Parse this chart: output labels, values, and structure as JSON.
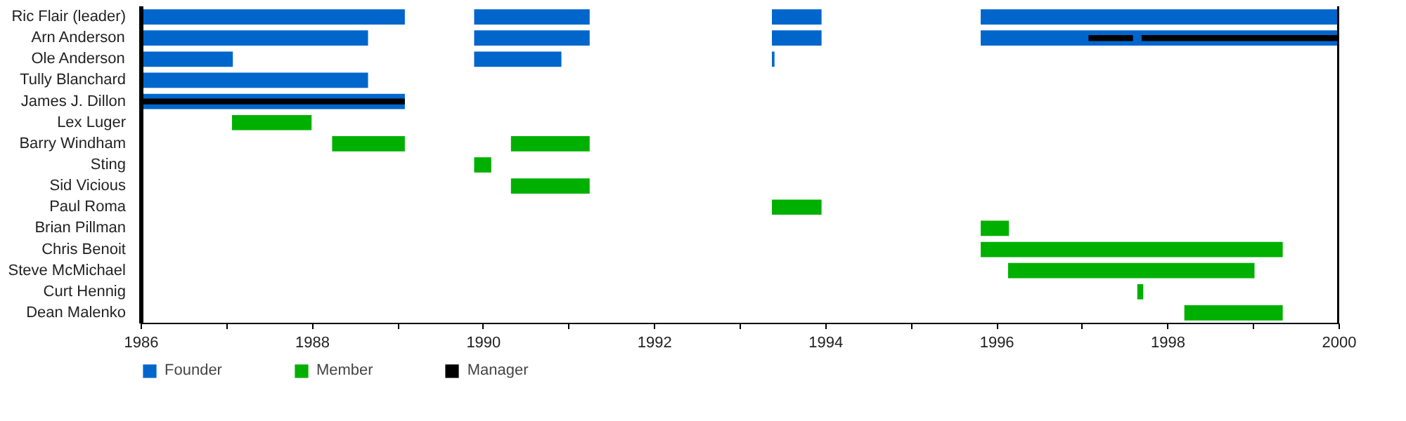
{
  "chart_data": {
    "type": "bar",
    "orientation": "horizontal",
    "categories": [
      "Ric Flair (leader)",
      "Arn Anderson",
      "Ole Anderson",
      "Tully Blanchard",
      "James J. Dillon",
      "Lex Luger",
      "Barry Windham",
      "Sting",
      "Sid Vicious",
      "Paul Roma",
      "Brian Pillman",
      "Chris Benoit",
      "Steve McMichael",
      "Curt Hennig",
      "Dean Malenko"
    ],
    "series": [
      {
        "name": "Founder",
        "color": "#0066cc",
        "base": [
          1986,
          1986,
          1986,
          1986,
          1986,
          null,
          null,
          null,
          null,
          null,
          null,
          null,
          null,
          null,
          null
        ],
        "values": [
          3.08,
          2.65,
          1.07,
          2.65,
          3.08,
          null,
          null,
          null,
          null,
          null,
          null,
          null,
          null,
          null,
          null
        ]
      },
      {
        "color": "#0066cc",
        "base": [
          1989.89,
          1989.89,
          1989.89,
          null,
          null,
          null,
          null,
          null,
          null,
          null,
          null,
          null,
          null,
          null,
          null
        ],
        "values": [
          1.35,
          1.35,
          1.02,
          null,
          null,
          null,
          null,
          null,
          null,
          null,
          null,
          null,
          null,
          null,
          null
        ]
      },
      {
        "color": "#0066cc",
        "base": [
          1993.37,
          1993.37,
          1993.37,
          null,
          null,
          null,
          null,
          null,
          null,
          null,
          null,
          null,
          null,
          null,
          null
        ],
        "values": [
          0.58,
          0.58,
          0.03,
          null,
          null,
          null,
          null,
          null,
          null,
          null,
          null,
          null,
          null,
          null,
          null
        ]
      },
      {
        "color": "#0066cc",
        "base": [
          1995.81,
          1995.81,
          null,
          null,
          null,
          null,
          null,
          null,
          null,
          null,
          null,
          null,
          null,
          null,
          null
        ],
        "values": [
          4.19,
          4.19,
          null,
          null,
          null,
          null,
          null,
          null,
          null,
          null,
          null,
          null,
          null,
          null,
          null
        ]
      },
      {
        "name": "Member",
        "color": "#00b000",
        "base": [
          null,
          null,
          null,
          null,
          null,
          1987.06,
          1988.23,
          1989.89,
          1990.32,
          1993.37,
          1995.81,
          1995.81,
          1996.13,
          1997.64,
          1998.19
        ],
        "values": [
          null,
          null,
          null,
          null,
          null,
          0.93,
          0.85,
          0.2,
          0.92,
          0.58,
          0.33,
          3.53,
          2.88,
          0.07,
          1.15
        ]
      },
      {
        "color": "#00b000",
        "base": [
          null,
          null,
          null,
          null,
          null,
          null,
          1990.32,
          null,
          null,
          null,
          null,
          null,
          null,
          null,
          null
        ],
        "values": [
          null,
          null,
          null,
          null,
          null,
          null,
          0.92,
          null,
          null,
          null,
          null,
          null,
          null,
          null,
          null
        ]
      },
      {
        "name": "Manager",
        "color": "#000000",
        "base": [
          null,
          1997.07,
          null,
          null,
          1986,
          null,
          null,
          null,
          null,
          null,
          null,
          null,
          null,
          null,
          null
        ],
        "values": [
          null,
          0.52,
          null,
          null,
          3.08,
          null,
          null,
          null,
          null,
          null,
          null,
          null,
          null,
          null,
          null
        ]
      },
      {
        "color": "#000000",
        "base": [
          null,
          1997.69,
          null,
          null,
          null,
          null,
          null,
          null,
          null,
          null,
          null,
          null,
          null,
          null,
          null
        ],
        "values": [
          null,
          2.31,
          null,
          null,
          null,
          null,
          null,
          null,
          null,
          null,
          null,
          null,
          null,
          null,
          null
        ]
      }
    ],
    "xlim": [
      1986,
      2000
    ],
    "xticks": [
      1986,
      {
        "value": 1987,
        "label": null
      },
      1988,
      {
        "value": 1989,
        "label": null
      },
      1990,
      {
        "value": 1991,
        "label": null
      },
      1992,
      {
        "value": 1993,
        "label": null
      },
      1994,
      {
        "value": 1995,
        "label": null
      },
      1996,
      {
        "value": 1997,
        "label": null
      },
      1998,
      {
        "value": 1999,
        "label": null
      },
      2000
    ],
    "grid": false,
    "legend": "bottom"
  }
}
